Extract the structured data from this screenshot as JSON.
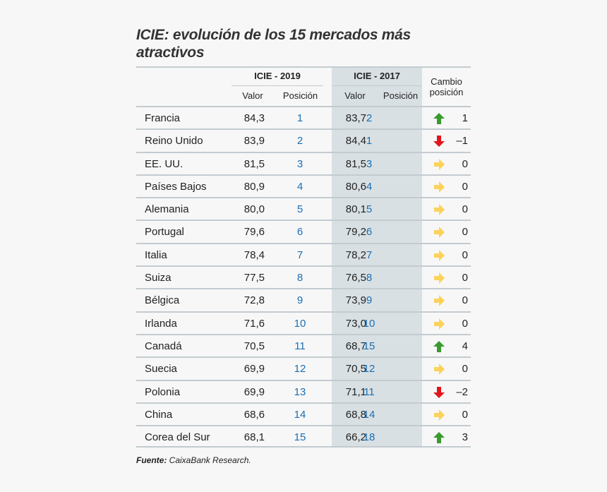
{
  "title": "ICIE: evolución de los 15 mercados más atractivos",
  "footer": {
    "label": "Fuente:",
    "text": " CaixaBank Research."
  },
  "colors": {
    "up": "#3a9a2f",
    "down": "#e3151b",
    "same": "#fdd25a",
    "position_text": "#1a6fb5",
    "shaded_column": "#d9e0e3"
  },
  "chart_data": {
    "type": "table",
    "title": "ICIE: evolución de los 15 mercados más atractivos",
    "groups": [
      "ICIE - 2019",
      "ICIE - 2017",
      "Cambio posición"
    ],
    "subheaders": [
      "Valor",
      "Posición",
      "Valor",
      "Posición"
    ],
    "rows": [
      {
        "country": "Francia",
        "v2019": "84,3",
        "p2019": "1",
        "v2017": "83,7",
        "p2017": "2",
        "dir": "up",
        "change": "1"
      },
      {
        "country": "Reino Unido",
        "v2019": "83,9",
        "p2019": "2",
        "v2017": "84,4",
        "p2017": "1",
        "dir": "down",
        "change": "–1"
      },
      {
        "country": "EE. UU.",
        "v2019": "81,5",
        "p2019": "3",
        "v2017": "81,5",
        "p2017": "3",
        "dir": "same",
        "change": "0"
      },
      {
        "country": "Países Bajos",
        "v2019": "80,9",
        "p2019": "4",
        "v2017": "80,6",
        "p2017": "4",
        "dir": "same",
        "change": "0"
      },
      {
        "country": "Alemania",
        "v2019": "80,0",
        "p2019": "5",
        "v2017": "80,1",
        "p2017": "5",
        "dir": "same",
        "change": "0"
      },
      {
        "country": "Portugal",
        "v2019": "79,6",
        "p2019": "6",
        "v2017": "79,2",
        "p2017": "6",
        "dir": "same",
        "change": "0"
      },
      {
        "country": "Italia",
        "v2019": "78,4",
        "p2019": "7",
        "v2017": "78,2",
        "p2017": "7",
        "dir": "same",
        "change": "0"
      },
      {
        "country": "Suiza",
        "v2019": "77,5",
        "p2019": "8",
        "v2017": "76,5",
        "p2017": "8",
        "dir": "same",
        "change": "0"
      },
      {
        "country": "Bélgica",
        "v2019": "72,8",
        "p2019": "9",
        "v2017": "73,9",
        "p2017": "9",
        "dir": "same",
        "change": "0"
      },
      {
        "country": "Irlanda",
        "v2019": "71,6",
        "p2019": "10",
        "v2017": "73,0",
        "p2017": "10",
        "dir": "same",
        "change": "0"
      },
      {
        "country": "Canadá",
        "v2019": "70,5",
        "p2019": "11",
        "v2017": "68,7",
        "p2017": "15",
        "dir": "up",
        "change": "4"
      },
      {
        "country": "Suecia",
        "v2019": "69,9",
        "p2019": "12",
        "v2017": "70,5",
        "p2017": "12",
        "dir": "same",
        "change": "0"
      },
      {
        "country": "Polonia",
        "v2019": "69,9",
        "p2019": "13",
        "v2017": "71,1",
        "p2017": "11",
        "dir": "down",
        "change": "–2"
      },
      {
        "country": "China",
        "v2019": "68,6",
        "p2019": "14",
        "v2017": "68,8",
        "p2017": "14",
        "dir": "same",
        "change": "0"
      },
      {
        "country": "Corea del Sur",
        "v2019": "68,1",
        "p2019": "15",
        "v2017": "66,2",
        "p2017": "18",
        "dir": "up",
        "change": "3"
      }
    ]
  }
}
